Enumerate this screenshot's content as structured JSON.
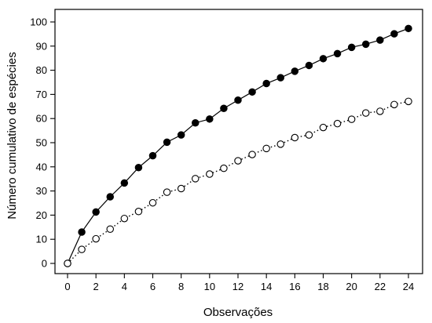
{
  "chart_data": {
    "type": "line",
    "title": "",
    "xlabel": "Observações",
    "ylabel": "Número cumulativo de espécies",
    "xlim": [
      0,
      24
    ],
    "ylim": [
      0,
      100
    ],
    "x_ticks": [
      0,
      2,
      4,
      6,
      8,
      10,
      12,
      14,
      16,
      18,
      20,
      22,
      24
    ],
    "y_ticks": [
      0,
      10,
      20,
      30,
      40,
      50,
      60,
      70,
      80,
      90,
      100
    ],
    "grid": false,
    "legend": "none",
    "x": [
      0,
      1,
      2,
      3,
      4,
      5,
      6,
      7,
      8,
      9,
      10,
      11,
      12,
      13,
      14,
      15,
      16,
      17,
      18,
      19,
      20,
      21,
      22,
      23,
      24
    ],
    "series": [
      {
        "marker": "filled-circle",
        "line_style": "solid",
        "color": "#000000",
        "values": [
          0,
          13,
          21.3,
          27.6,
          33.3,
          39.7,
          44.6,
          50.2,
          53.2,
          58.2,
          59.8,
          64.2,
          67.6,
          71,
          74.5,
          76.9,
          79.6,
          82,
          84.8,
          86.9,
          89.5,
          90.8,
          92.5,
          95.1,
          97.3
        ]
      },
      {
        "marker": "open-circle",
        "line_style": "dotted",
        "color": "#000000",
        "values": [
          0,
          5.8,
          10.2,
          14.2,
          18.6,
          21.5,
          25.1,
          29.5,
          31,
          35.1,
          37,
          39.4,
          42.5,
          45.1,
          47.6,
          49.4,
          52.1,
          53.2,
          56.3,
          57.9,
          59.7,
          62.3,
          63,
          65.8,
          67.1
        ]
      }
    ]
  }
}
